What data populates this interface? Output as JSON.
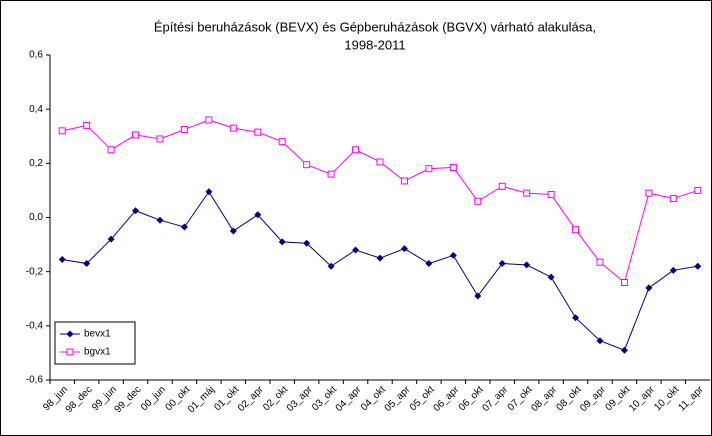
{
  "chart_data": {
    "type": "line",
    "title": [
      "Építési beruházások (BEVX) és Gépberuházások (BGVX) várható alakulása,",
      "1998-2011"
    ],
    "categories": [
      "98_jun",
      "98_dec",
      "99_jun",
      "99_dec",
      "00_jun",
      "00_okt",
      "01_máj",
      "01_okt",
      "02_apr",
      "02_okt",
      "03_apr",
      "03_okt",
      "04_apr",
      "04_okt",
      "05_apr",
      "05_okt",
      "06_apr",
      "06_okt",
      "07_apr",
      "07_okt",
      "08_apr",
      "08_okt",
      "09_apr",
      "09_okt",
      "10_apr",
      "10_okt",
      "11_apr"
    ],
    "series": [
      {
        "name": "bevx1",
        "color": "#000080",
        "marker": "diamond",
        "values": [
          -0.155,
          -0.17,
          -0.08,
          0.025,
          -0.01,
          -0.035,
          0.095,
          -0.05,
          0.01,
          -0.09,
          -0.095,
          -0.18,
          -0.12,
          -0.15,
          -0.115,
          -0.17,
          -0.14,
          -0.29,
          -0.17,
          -0.175,
          -0.22,
          -0.37,
          -0.455,
          -0.49,
          -0.26,
          -0.195,
          -0.18
        ]
      },
      {
        "name": "bgvx1",
        "color": "#ff00ff",
        "marker": "square",
        "values": [
          0.32,
          0.34,
          0.25,
          0.305,
          0.29,
          0.325,
          0.36,
          0.33,
          0.315,
          0.28,
          0.195,
          0.16,
          0.25,
          0.205,
          0.135,
          0.18,
          0.185,
          0.06,
          0.115,
          0.09,
          0.085,
          -0.045,
          -0.165,
          -0.24,
          0.09,
          0.07,
          0.1
        ]
      }
    ],
    "ylim": [
      -0.6,
      0.6
    ],
    "yticks": [
      {
        "value": -0.6,
        "label": "-0,6"
      },
      {
        "value": -0.4,
        "label": "-0,4"
      },
      {
        "value": -0.2,
        "label": "-0,2"
      },
      {
        "value": 0,
        "label": "0,0"
      },
      {
        "value": 0.2,
        "label": "0,2"
      },
      {
        "value": 0.4,
        "label": "0,4"
      },
      {
        "value": 0.6,
        "label": "0,6"
      }
    ],
    "grid": false,
    "legend": "lower-left"
  }
}
